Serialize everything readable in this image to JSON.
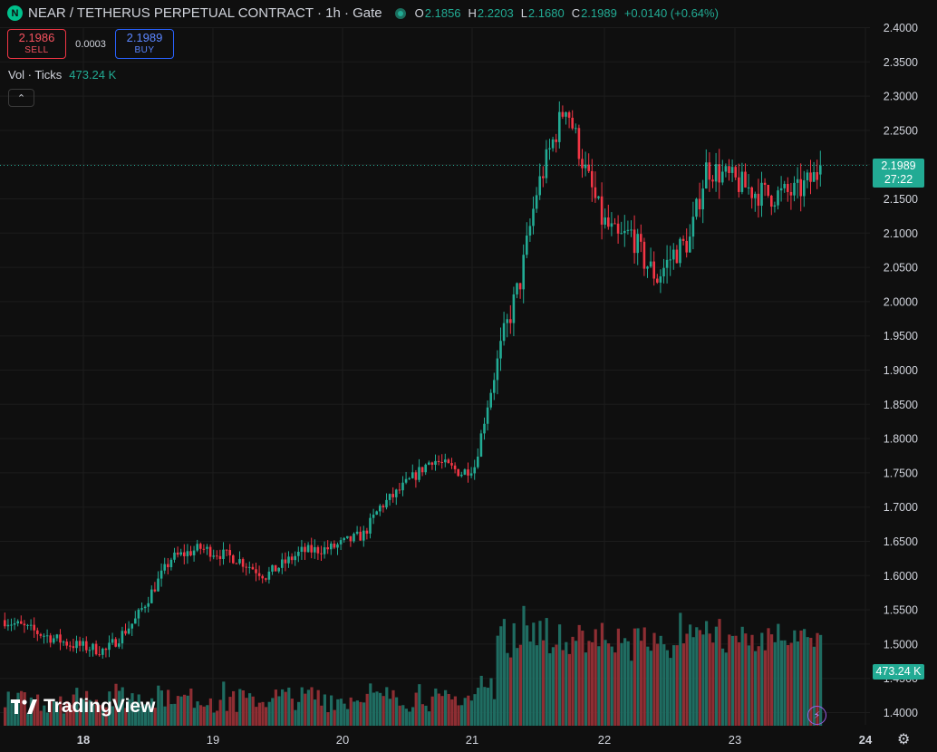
{
  "symbol": {
    "logo_letter": "N",
    "title": "NEAR / TETHERUS PERPETUAL CONTRACT · 1h · Gate",
    "ohlc": {
      "o_label": "O",
      "o": "2.1856",
      "h_label": "H",
      "h": "2.2203",
      "l_label": "L",
      "l": "2.1680",
      "c_label": "C",
      "c": "2.1989",
      "change": "+0.0140 (+0.64%)"
    }
  },
  "trade": {
    "sell_price": "2.1986",
    "sell_label": "SELL",
    "spread": "0.0003",
    "buy_price": "2.1989",
    "buy_label": "BUY"
  },
  "volume_indicator": {
    "label": "Vol · Ticks",
    "value": "473.24 K"
  },
  "collapse_icon": "chevron-up-icon",
  "brand": "TradingView",
  "price_tag": {
    "price": "2.1989",
    "countdown": "27:22"
  },
  "volume_tag": "473.24 K",
  "colors": {
    "up": "#22ab94",
    "down": "#f23645",
    "background": "#0f0f0f",
    "grid": "#1c1c1c",
    "up_volume": "#1f6c61",
    "down_volume": "#8e2e33"
  },
  "chart_data": {
    "type": "candlestick",
    "interval": "1h",
    "ylim": [
      1.4,
      2.4
    ],
    "y_ticks": [
      "2.4000",
      "2.3500",
      "2.3000",
      "2.2500",
      "2.2000",
      "2.1500",
      "2.1000",
      "2.0500",
      "2.0000",
      "1.9500",
      "1.9000",
      "1.8500",
      "1.8000",
      "1.7500",
      "1.7000",
      "1.6500",
      "1.6000",
      "1.5500",
      "1.5000",
      "1.4500",
      "1.4000"
    ],
    "x_ticks": [
      "18",
      "19",
      "20",
      "21",
      "22",
      "23",
      "24"
    ],
    "anchors": {
      "x_keys": [
        0,
        11,
        20,
        31,
        40,
        51,
        60,
        71,
        80,
        91,
        100,
        110,
        115
      ],
      "price": [
        1.535,
        1.515,
        1.5,
        1.49,
        1.535,
        1.625,
        1.64,
        1.625,
        1.6,
        1.635,
        1.64,
        1.66,
        1.7
      ],
      "x_keys2": [
        120,
        131,
        140,
        144,
        148,
        153,
        158,
        163,
        167,
        172,
        178,
        183,
        188,
        192,
        196,
        200,
        205,
        210,
        215,
        218,
        222,
        226,
        230,
        235,
        243,
        250
      ],
      "price2": [
        1.72,
        1.77,
        1.75,
        1.76,
        1.85,
        1.95,
        2.03,
        2.16,
        2.22,
        2.29,
        2.19,
        2.12,
        2.09,
        2.1,
        2.06,
        2.035,
        2.07,
        2.09,
        2.195,
        2.19,
        2.18,
        2.17,
        2.16,
        2.155,
        2.16,
        2.19
      ],
      "note": ""
    },
    "last_price": 2.1989,
    "last_volume": "473.24 K"
  }
}
